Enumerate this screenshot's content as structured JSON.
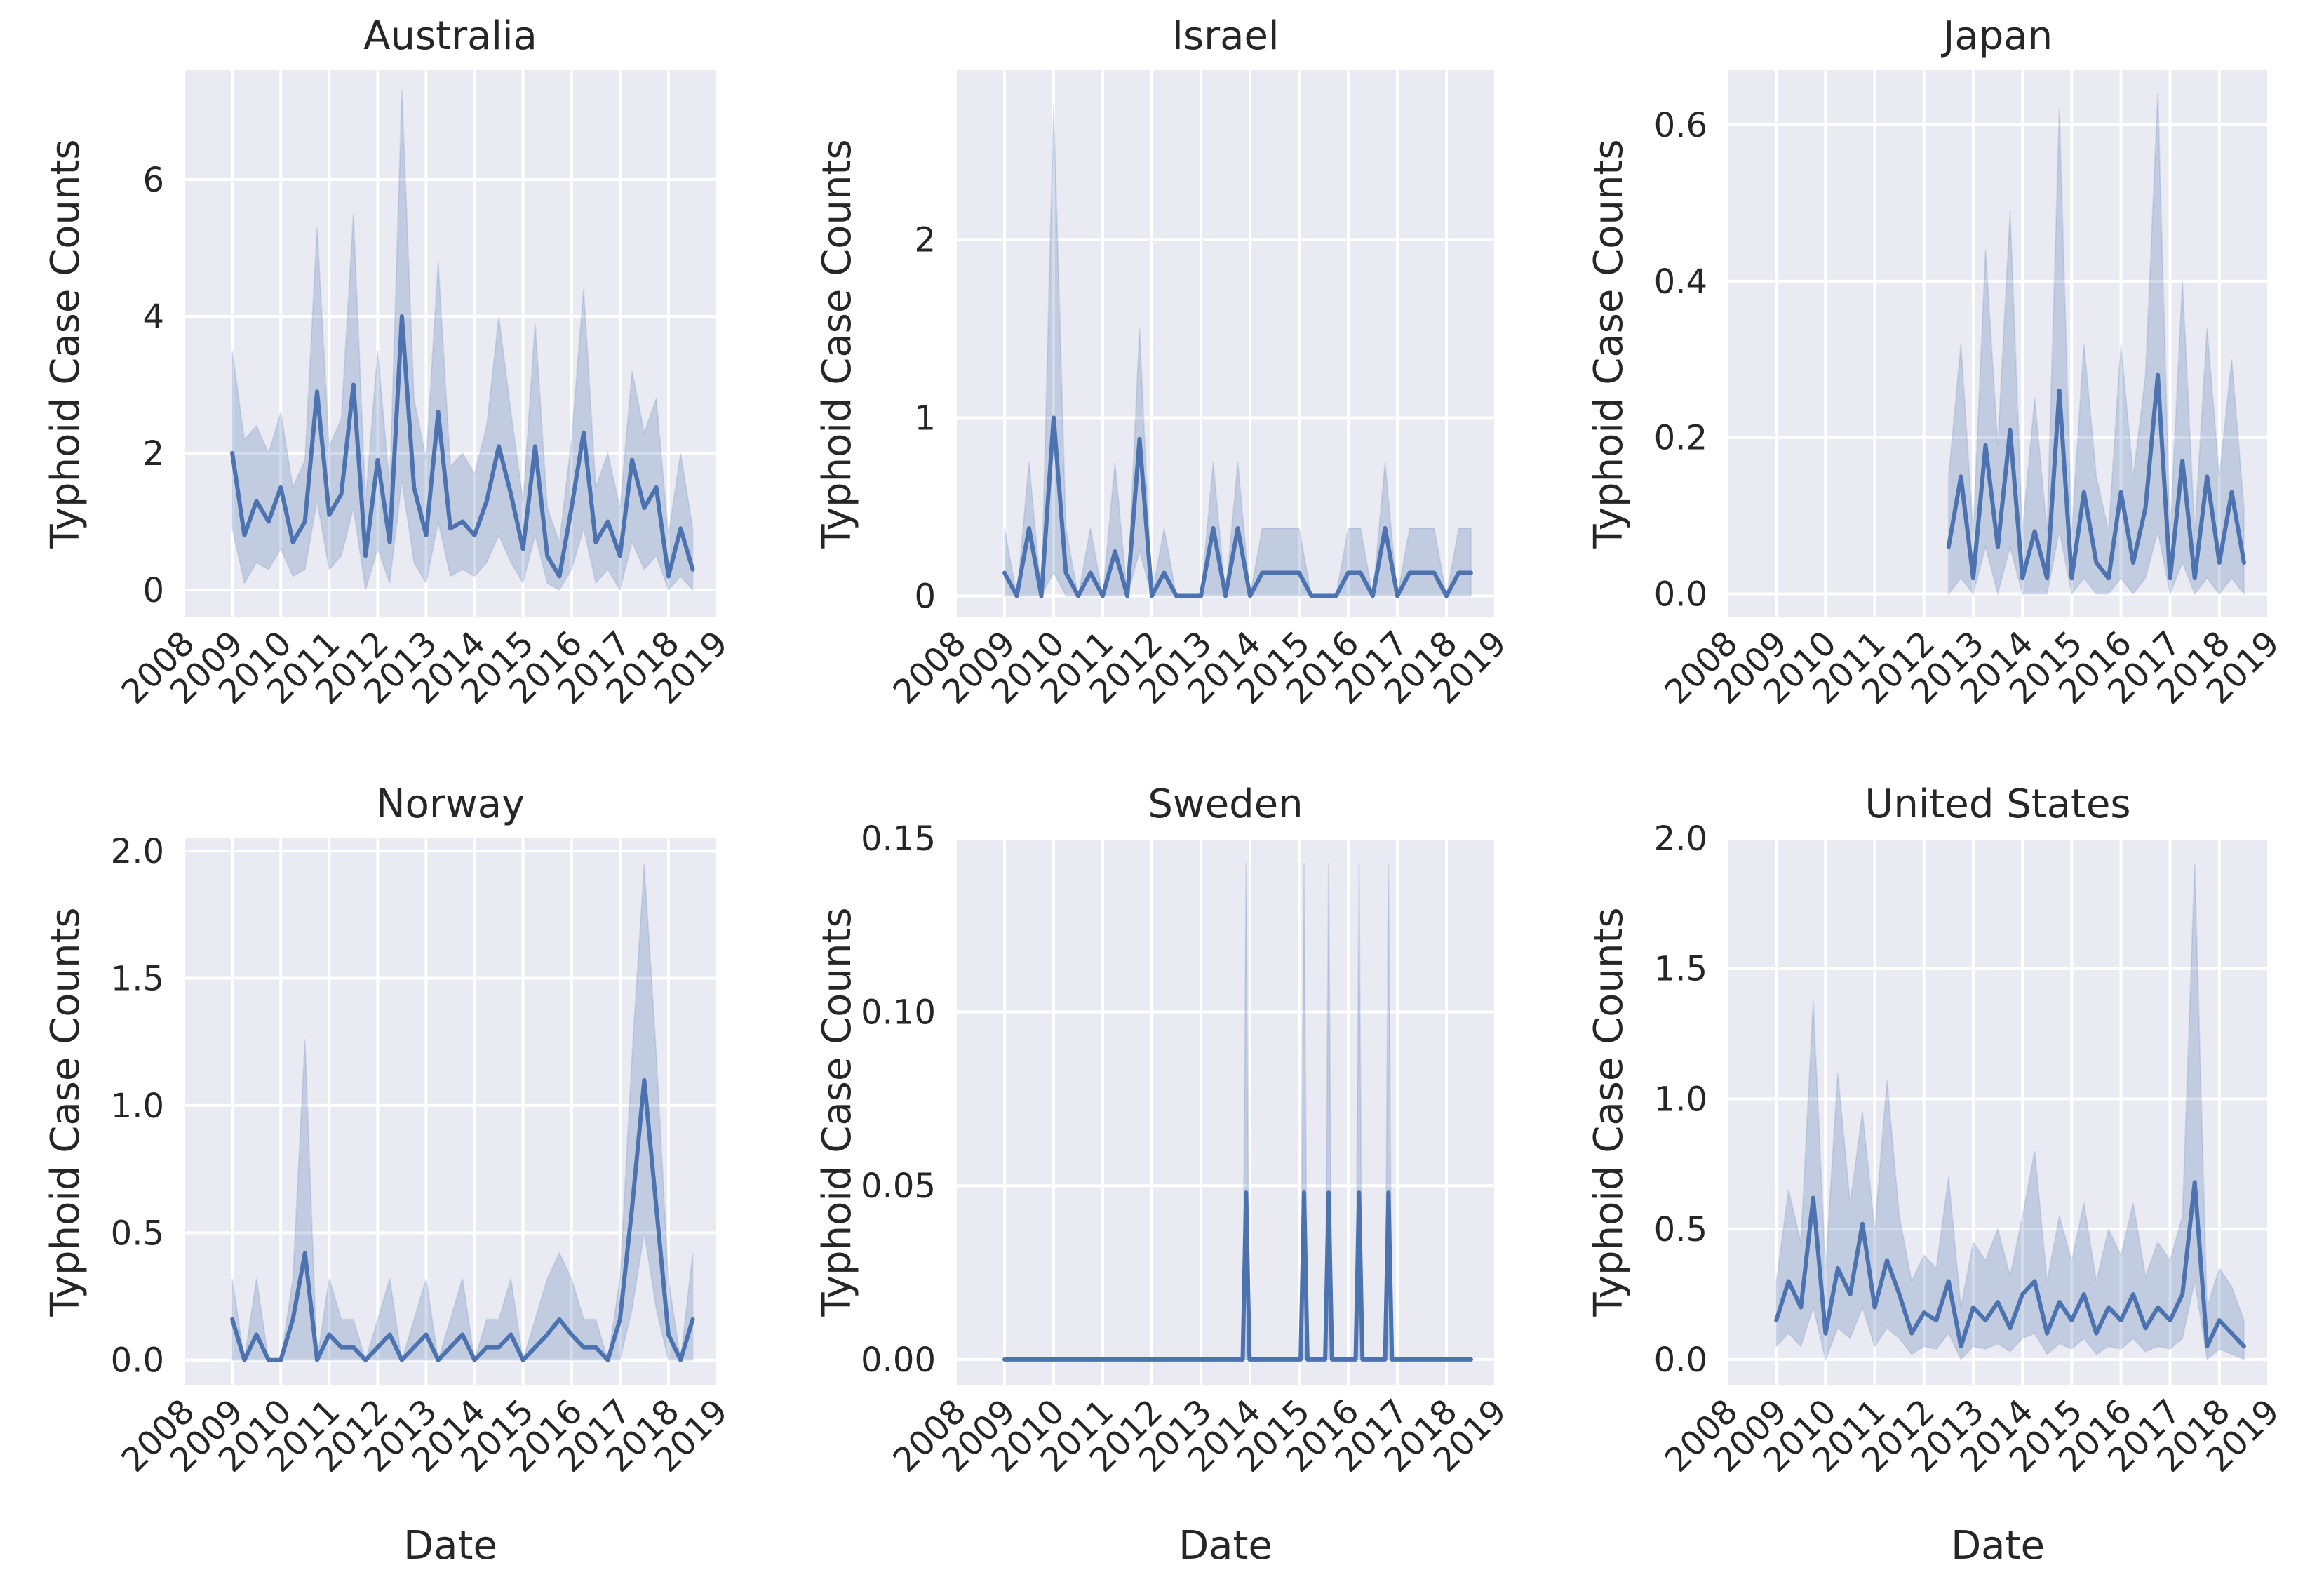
{
  "chart_data": [
    {
      "type": "line",
      "title": "Australia",
      "xlabel": "",
      "ylabel": "Typhoid Case Counts",
      "xlim": [
        2008.0,
        2019.0
      ],
      "ylim": [
        -0.4,
        7.6
      ],
      "yticks": [
        0,
        2,
        4,
        6
      ],
      "yticklabels": [
        "0",
        "2",
        "4",
        "6"
      ],
      "xticklabels": [
        "2008",
        "2009",
        "2010",
        "2011",
        "2012",
        "2013",
        "2014",
        "2015",
        "2016",
        "2017",
        "2018",
        "2019"
      ],
      "x": [
        2009.0,
        2009.25,
        2009.5,
        2009.75,
        2010.0,
        2010.25,
        2010.5,
        2010.75,
        2011.0,
        2011.25,
        2011.5,
        2011.75,
        2012.0,
        2012.25,
        2012.5,
        2012.75,
        2013.0,
        2013.25,
        2013.5,
        2013.75,
        2014.0,
        2014.25,
        2014.5,
        2014.75,
        2015.0,
        2015.25,
        2015.5,
        2015.75,
        2016.0,
        2016.25,
        2016.5,
        2016.75,
        2017.0,
        2017.25,
        2017.5,
        2017.75,
        2018.0,
        2018.25,
        2018.5
      ],
      "series": [
        {
          "name": "mean",
          "values": [
            2.0,
            0.8,
            1.3,
            1.0,
            1.5,
            0.7,
            1.0,
            2.9,
            1.1,
            1.4,
            3.0,
            0.5,
            1.9,
            0.7,
            4.0,
            1.5,
            0.8,
            2.6,
            0.9,
            1.0,
            0.8,
            1.3,
            2.1,
            1.4,
            0.6,
            2.1,
            0.5,
            0.2,
            1.2,
            2.3,
            0.7,
            1.0,
            0.5,
            1.9,
            1.2,
            1.5,
            0.2,
            0.9,
            0.3
          ]
        }
      ],
      "band_lower": [
        0.9,
        0.1,
        0.4,
        0.3,
        0.6,
        0.2,
        0.3,
        1.3,
        0.3,
        0.5,
        1.2,
        0.0,
        0.6,
        0.1,
        1.6,
        0.4,
        0.1,
        1.0,
        0.2,
        0.3,
        0.2,
        0.4,
        0.8,
        0.4,
        0.1,
        0.8,
        0.1,
        0.0,
        0.3,
        0.9,
        0.1,
        0.3,
        0.0,
        0.7,
        0.3,
        0.5,
        0.0,
        0.2,
        0.0
      ],
      "band_upper": [
        3.5,
        2.2,
        2.4,
        2.0,
        2.6,
        1.5,
        1.9,
        5.3,
        2.1,
        2.5,
        5.5,
        1.3,
        3.5,
        1.5,
        7.3,
        2.8,
        1.9,
        4.8,
        1.8,
        2.0,
        1.7,
        2.4,
        4.0,
        2.6,
        1.3,
        3.9,
        1.2,
        0.7,
        2.2,
        4.4,
        1.5,
        2.0,
        1.2,
        3.2,
        2.3,
        2.8,
        0.8,
        2.0,
        0.9
      ]
    },
    {
      "type": "line",
      "title": "Israel",
      "xlabel": "",
      "ylabel": "Typhoid Case Counts",
      "xlim": [
        2008.0,
        2019.0
      ],
      "ylim": [
        -0.12,
        2.95
      ],
      "yticks": [
        0,
        1,
        2
      ],
      "yticklabels": [
        "0",
        "1",
        "2"
      ],
      "xticklabels": [
        "2008",
        "2009",
        "2010",
        "2011",
        "2012",
        "2013",
        "2014",
        "2015",
        "2016",
        "2017",
        "2018",
        "2019"
      ],
      "x": [
        2009.0,
        2009.25,
        2009.5,
        2009.75,
        2010.0,
        2010.25,
        2010.5,
        2010.75,
        2011.0,
        2011.25,
        2011.5,
        2011.75,
        2012.0,
        2012.25,
        2012.5,
        2012.75,
        2013.0,
        2013.25,
        2013.5,
        2013.75,
        2014.0,
        2014.25,
        2014.5,
        2014.75,
        2015.0,
        2015.25,
        2015.5,
        2015.75,
        2016.0,
        2016.25,
        2016.5,
        2016.75,
        2017.0,
        2017.25,
        2017.5,
        2017.75,
        2018.0,
        2018.25,
        2018.5
      ],
      "series": [
        {
          "name": "mean",
          "values": [
            0.13,
            0.0,
            0.38,
            0.0,
            1.0,
            0.13,
            0.0,
            0.13,
            0.0,
            0.25,
            0.0,
            0.88,
            0.0,
            0.13,
            0.0,
            0.0,
            0.0,
            0.38,
            0.0,
            0.38,
            0.0,
            0.13,
            0.13,
            0.13,
            0.13,
            0.0,
            0.0,
            0.0,
            0.13,
            0.13,
            0.0,
            0.38,
            0.0,
            0.13,
            0.13,
            0.13,
            0.0,
            0.13,
            0.13
          ]
        }
      ],
      "band_lower": [
        0.0,
        0.0,
        0.0,
        0.0,
        0.13,
        0.0,
        0.0,
        0.0,
        0.0,
        0.0,
        0.0,
        0.25,
        0.0,
        0.0,
        0.0,
        0.0,
        0.0,
        0.0,
        0.0,
        0.0,
        0.0,
        0.0,
        0.0,
        0.0,
        0.0,
        0.0,
        0.0,
        0.0,
        0.0,
        0.0,
        0.0,
        0.0,
        0.0,
        0.0,
        0.0,
        0.0,
        0.0,
        0.0,
        0.0
      ],
      "band_upper": [
        0.38,
        0.0,
        0.75,
        0.0,
        2.75,
        0.38,
        0.0,
        0.38,
        0.0,
        0.75,
        0.0,
        1.5,
        0.0,
        0.38,
        0.0,
        0.0,
        0.0,
        0.75,
        0.0,
        0.75,
        0.0,
        0.38,
        0.38,
        0.38,
        0.38,
        0.0,
        0.0,
        0.0,
        0.38,
        0.38,
        0.0,
        0.75,
        0.0,
        0.38,
        0.38,
        0.38,
        0.0,
        0.38,
        0.38
      ]
    },
    {
      "type": "line",
      "title": "Japan",
      "xlabel": "",
      "ylabel": "Typhoid Case Counts",
      "xlim": [
        2008.0,
        2019.0
      ],
      "ylim": [
        -0.03,
        0.67
      ],
      "yticks": [
        0.0,
        0.2,
        0.4,
        0.6
      ],
      "yticklabels": [
        "0.0",
        "0.2",
        "0.4",
        "0.6"
      ],
      "xticklabels": [
        "2008",
        "2009",
        "2010",
        "2011",
        "2012",
        "2013",
        "2014",
        "2015",
        "2016",
        "2017",
        "2018",
        "2019"
      ],
      "x": [
        2012.5,
        2012.75,
        2013.0,
        2013.25,
        2013.5,
        2013.75,
        2014.0,
        2014.25,
        2014.5,
        2014.75,
        2015.0,
        2015.25,
        2015.5,
        2015.75,
        2016.0,
        2016.25,
        2016.5,
        2016.75,
        2017.0,
        2017.25,
        2017.5,
        2017.75,
        2018.0,
        2018.25,
        2018.5
      ],
      "series": [
        {
          "name": "mean",
          "values": [
            0.06,
            0.15,
            0.02,
            0.19,
            0.06,
            0.21,
            0.02,
            0.08,
            0.02,
            0.26,
            0.02,
            0.13,
            0.04,
            0.02,
            0.13,
            0.04,
            0.11,
            0.28,
            0.02,
            0.17,
            0.02,
            0.15,
            0.04,
            0.13,
            0.04
          ]
        }
      ],
      "band_lower": [
        0.0,
        0.02,
        0.0,
        0.06,
        0.0,
        0.06,
        0.0,
        0.0,
        0.0,
        0.08,
        0.0,
        0.02,
        0.0,
        0.0,
        0.02,
        0.0,
        0.02,
        0.08,
        0.0,
        0.04,
        0.0,
        0.02,
        0.0,
        0.02,
        0.0
      ],
      "band_upper": [
        0.15,
        0.32,
        0.08,
        0.44,
        0.19,
        0.49,
        0.08,
        0.25,
        0.08,
        0.62,
        0.08,
        0.32,
        0.15,
        0.08,
        0.32,
        0.15,
        0.28,
        0.64,
        0.08,
        0.4,
        0.08,
        0.34,
        0.15,
        0.3,
        0.11
      ]
    },
    {
      "type": "line",
      "title": "Norway",
      "xlabel": "Date",
      "ylabel": "Typhoid Case Counts",
      "xlim": [
        2008.0,
        2019.0
      ],
      "ylim": [
        -0.1,
        2.05
      ],
      "yticks": [
        0.0,
        0.5,
        1.0,
        1.5,
        2.0
      ],
      "yticklabels": [
        "0.0",
        "0.5",
        "1.0",
        "1.5",
        "2.0"
      ],
      "xticklabels": [
        "2008",
        "2009",
        "2010",
        "2011",
        "2012",
        "2013",
        "2014",
        "2015",
        "2016",
        "2017",
        "2018",
        "2019"
      ],
      "x": [
        2009.0,
        2009.25,
        2009.5,
        2009.75,
        2010.0,
        2010.25,
        2010.5,
        2010.75,
        2011.0,
        2011.25,
        2011.5,
        2011.75,
        2012.0,
        2012.25,
        2012.5,
        2012.75,
        2013.0,
        2013.25,
        2013.5,
        2013.75,
        2014.0,
        2014.25,
        2014.5,
        2014.75,
        2015.0,
        2015.25,
        2015.5,
        2015.75,
        2016.0,
        2016.25,
        2016.5,
        2016.75,
        2017.0,
        2017.25,
        2017.5,
        2017.75,
        2018.0,
        2018.25,
        2018.5
      ],
      "series": [
        {
          "name": "mean",
          "values": [
            0.16,
            0.0,
            0.1,
            0.0,
            0.0,
            0.16,
            0.42,
            0.0,
            0.1,
            0.05,
            0.05,
            0.0,
            0.05,
            0.1,
            0.0,
            0.05,
            0.1,
            0.0,
            0.05,
            0.1,
            0.0,
            0.05,
            0.05,
            0.1,
            0.0,
            0.05,
            0.1,
            0.16,
            0.1,
            0.05,
            0.05,
            0.0,
            0.16,
            0.6,
            1.1,
            0.6,
            0.1,
            0.0,
            0.16
          ]
        }
      ],
      "band_lower": [
        0.0,
        0.0,
        0.0,
        0.0,
        0.0,
        0.0,
        0.0,
        0.0,
        0.0,
        0.0,
        0.0,
        0.0,
        0.0,
        0.0,
        0.0,
        0.0,
        0.0,
        0.0,
        0.0,
        0.0,
        0.0,
        0.0,
        0.0,
        0.0,
        0.0,
        0.0,
        0.0,
        0.0,
        0.0,
        0.0,
        0.0,
        0.0,
        0.0,
        0.2,
        0.5,
        0.2,
        0.0,
        0.0,
        0.0
      ],
      "band_upper": [
        0.32,
        0.0,
        0.32,
        0.0,
        0.0,
        0.32,
        1.26,
        0.0,
        0.32,
        0.16,
        0.16,
        0.0,
        0.16,
        0.32,
        0.0,
        0.16,
        0.32,
        0.0,
        0.16,
        0.32,
        0.0,
        0.16,
        0.16,
        0.32,
        0.0,
        0.16,
        0.32,
        0.42,
        0.32,
        0.16,
        0.16,
        0.0,
        0.32,
        1.2,
        1.95,
        1.2,
        0.32,
        0.0,
        0.42
      ]
    },
    {
      "type": "line",
      "title": "Sweden",
      "xlabel": "Date",
      "ylabel": "Typhoid Case Counts",
      "xlim": [
        2008.0,
        2019.0
      ],
      "ylim": [
        -0.0075,
        0.15
      ],
      "yticks": [
        0.0,
        0.05,
        0.1,
        0.15
      ],
      "yticklabels": [
        "0.00",
        "0.05",
        "0.10",
        "0.15"
      ],
      "xticklabels": [
        "2008",
        "2009",
        "2010",
        "2011",
        "2012",
        "2013",
        "2014",
        "2015",
        "2016",
        "2017",
        "2018",
        "2019"
      ],
      "x": [
        2009.0,
        2013.85,
        2013.92,
        2013.99,
        2015.03,
        2015.1,
        2015.17,
        2015.53,
        2015.6,
        2015.67,
        2016.15,
        2016.22,
        2016.29,
        2016.75,
        2016.82,
        2016.89,
        2018.5
      ],
      "series": [
        {
          "name": "mean",
          "values": [
            0.0,
            0.0,
            0.048,
            0.0,
            0.0,
            0.048,
            0.0,
            0.0,
            0.048,
            0.0,
            0.0,
            0.048,
            0.0,
            0.0,
            0.048,
            0.0,
            0.0
          ]
        }
      ],
      "band_lower": [
        0.0,
        0.0,
        0.0,
        0.0,
        0.0,
        0.0,
        0.0,
        0.0,
        0.0,
        0.0,
        0.0,
        0.0,
        0.0,
        0.0,
        0.0,
        0.0,
        0.0
      ],
      "band_upper": [
        0.0,
        0.0,
        0.143,
        0.0,
        0.0,
        0.143,
        0.0,
        0.0,
        0.143,
        0.0,
        0.0,
        0.143,
        0.0,
        0.0,
        0.143,
        0.0,
        0.0
      ]
    },
    {
      "type": "line",
      "title": "United States",
      "xlabel": "Date",
      "ylabel": "Typhoid Case Counts",
      "xlim": [
        2008.0,
        2019.0
      ],
      "ylim": [
        -0.1,
        2.0
      ],
      "yticks": [
        0.0,
        0.5,
        1.0,
        1.5,
        2.0
      ],
      "yticklabels": [
        "0.0",
        "0.5",
        "1.0",
        "1.5",
        "2.0"
      ],
      "xticklabels": [
        "2008",
        "2009",
        "2010",
        "2011",
        "2012",
        "2013",
        "2014",
        "2015",
        "2016",
        "2017",
        "2018",
        "2019"
      ],
      "x": [
        2009.0,
        2009.25,
        2009.5,
        2009.75,
        2010.0,
        2010.25,
        2010.5,
        2010.75,
        2011.0,
        2011.25,
        2011.5,
        2011.75,
        2012.0,
        2012.25,
        2012.5,
        2012.75,
        2013.0,
        2013.25,
        2013.5,
        2013.75,
        2014.0,
        2014.25,
        2014.5,
        2014.75,
        2015.0,
        2015.25,
        2015.5,
        2015.75,
        2016.0,
        2016.25,
        2016.5,
        2016.75,
        2017.0,
        2017.25,
        2017.5,
        2017.75,
        2018.0,
        2018.25,
        2018.5
      ],
      "series": [
        {
          "name": "mean",
          "values": [
            0.15,
            0.3,
            0.2,
            0.62,
            0.1,
            0.35,
            0.25,
            0.52,
            0.2,
            0.38,
            0.25,
            0.1,
            0.18,
            0.15,
            0.3,
            0.05,
            0.2,
            0.15,
            0.22,
            0.12,
            0.25,
            0.3,
            0.1,
            0.22,
            0.15,
            0.25,
            0.1,
            0.2,
            0.15,
            0.25,
            0.12,
            0.2,
            0.15,
            0.25,
            0.68,
            0.05,
            0.15,
            0.1,
            0.05
          ]
        }
      ],
      "band_lower": [
        0.05,
        0.1,
        0.05,
        0.2,
        0.0,
        0.12,
        0.08,
        0.2,
        0.05,
        0.12,
        0.08,
        0.02,
        0.05,
        0.04,
        0.1,
        0.0,
        0.05,
        0.04,
        0.06,
        0.03,
        0.08,
        0.1,
        0.02,
        0.06,
        0.04,
        0.08,
        0.02,
        0.05,
        0.04,
        0.08,
        0.03,
        0.05,
        0.04,
        0.08,
        0.3,
        0.0,
        0.04,
        0.02,
        0.0
      ],
      "band_upper": [
        0.3,
        0.65,
        0.45,
        1.38,
        0.35,
        1.1,
        0.6,
        0.95,
        0.5,
        1.07,
        0.55,
        0.3,
        0.4,
        0.35,
        0.7,
        0.2,
        0.45,
        0.38,
        0.5,
        0.32,
        0.55,
        0.8,
        0.3,
        0.55,
        0.38,
        0.6,
        0.3,
        0.5,
        0.4,
        0.6,
        0.32,
        0.45,
        0.38,
        0.55,
        1.9,
        0.2,
        0.35,
        0.28,
        0.15
      ]
    }
  ]
}
